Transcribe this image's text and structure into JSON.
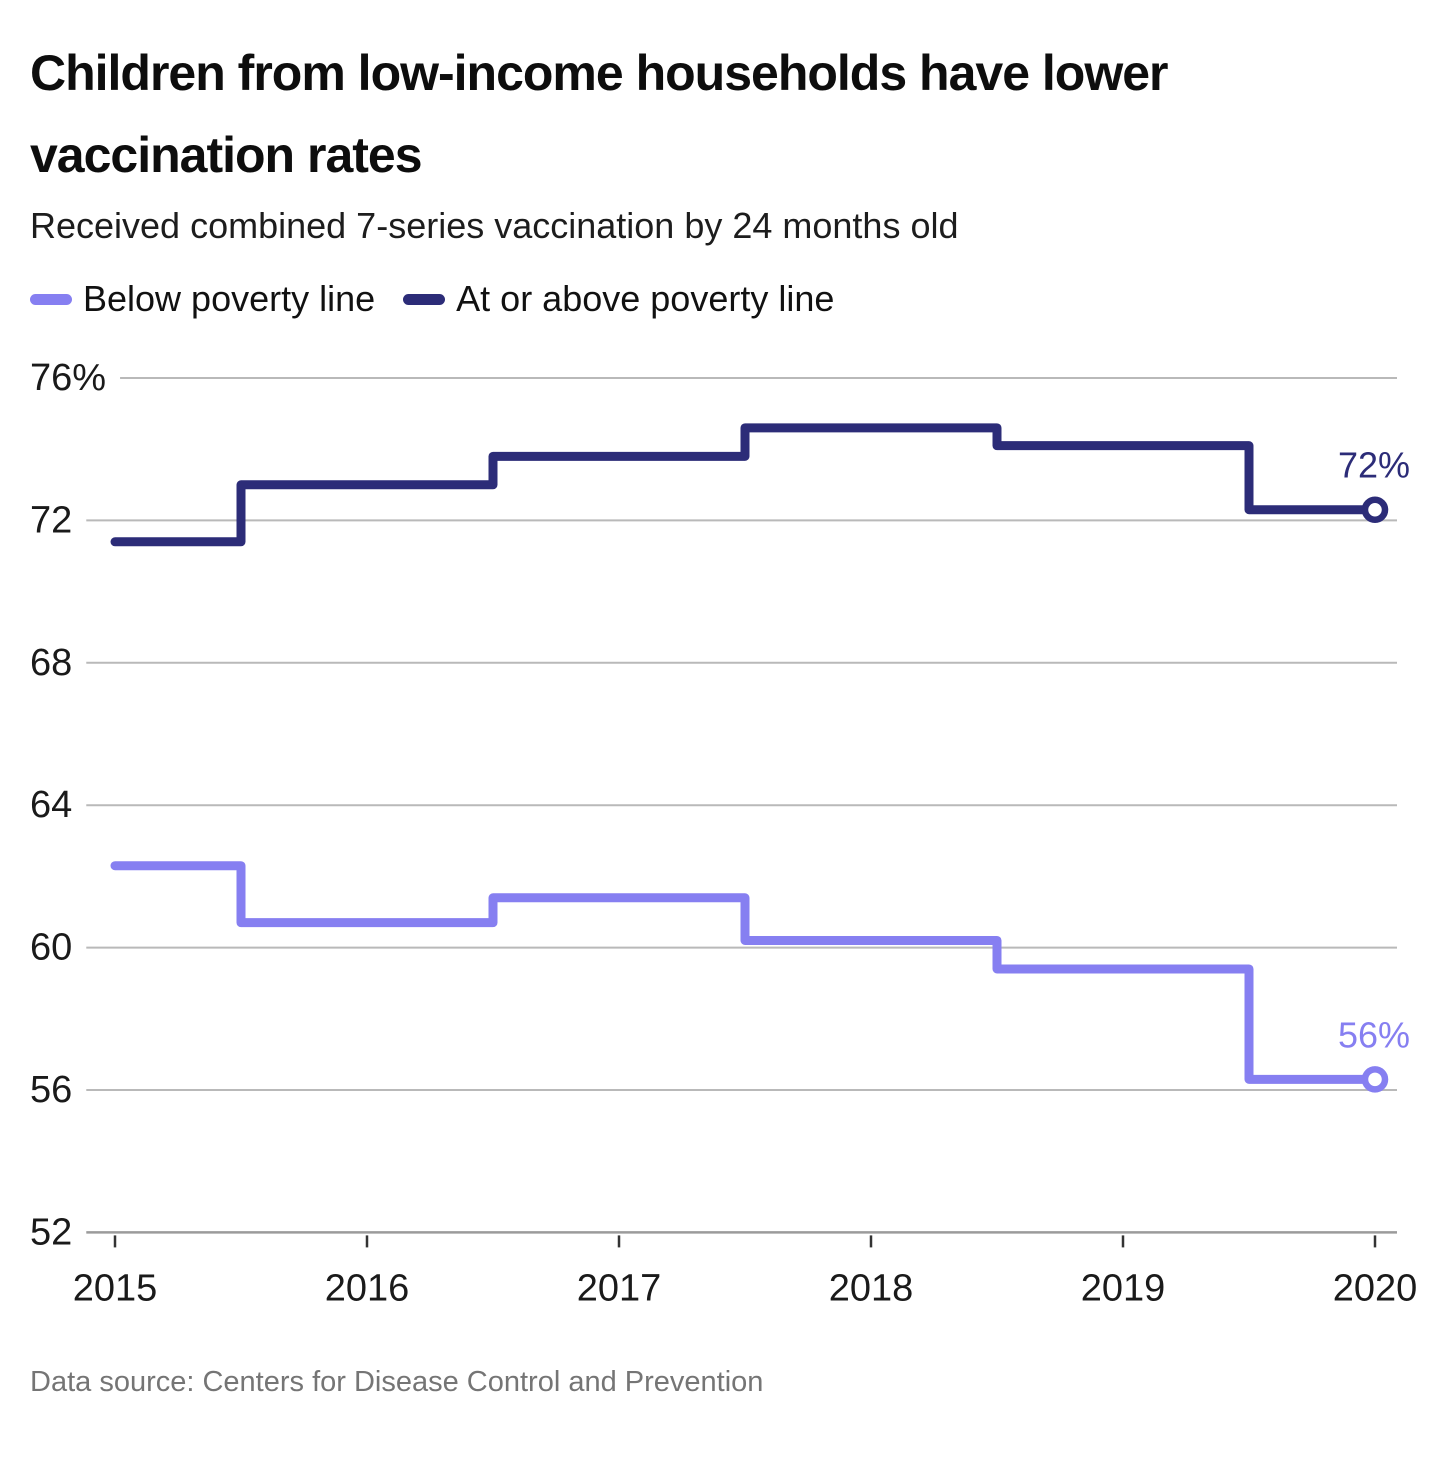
{
  "header": {
    "title_line1": "Children from low-income households have lower",
    "title_line2": "vaccination rates",
    "subtitle": "Received combined 7-series vaccination by 24 months old"
  },
  "legend": [
    {
      "label": "Below poverty line",
      "color": "#867ff1"
    },
    {
      "label": "At or above poverty line",
      "color": "#2c2c78"
    }
  ],
  "chart_data": {
    "type": "line",
    "step": "mid-year",
    "title": "Children from low-income households have lower vaccination rates",
    "subtitle": "Received combined 7-series vaccination by 24 months old",
    "x": [
      2015,
      2016,
      2017,
      2018,
      2019,
      2020
    ],
    "series": [
      {
        "name": "Below poverty line",
        "color": "#867ff1",
        "values": [
          62.3,
          60.7,
          61.4,
          60.2,
          59.4,
          56.3
        ],
        "end_label": "56%"
      },
      {
        "name": "At or above poverty line",
        "color": "#2c2c78",
        "values": [
          71.4,
          73.0,
          73.8,
          74.6,
          74.1,
          72.3
        ],
        "end_label": "72%"
      }
    ],
    "ylim": [
      52,
      76
    ],
    "yticks": [
      {
        "value": 76,
        "label": "76%"
      },
      {
        "value": 72,
        "label": "72"
      },
      {
        "value": 68,
        "label": "68"
      },
      {
        "value": 64,
        "label": "64"
      },
      {
        "value": 60,
        "label": "60"
      },
      {
        "value": 56,
        "label": "56"
      },
      {
        "value": 52,
        "label": "52"
      }
    ],
    "xticks": [
      "2015",
      "2016",
      "2017",
      "2018",
      "2019",
      "2020"
    ],
    "grid": true,
    "legend_position": "top",
    "gridline_color": "#b9b9b9",
    "axis_color": "#9b9b9b",
    "tick_color": "#333333"
  },
  "footer": {
    "source": "Data source: Centers for Disease Control and Prevention"
  }
}
